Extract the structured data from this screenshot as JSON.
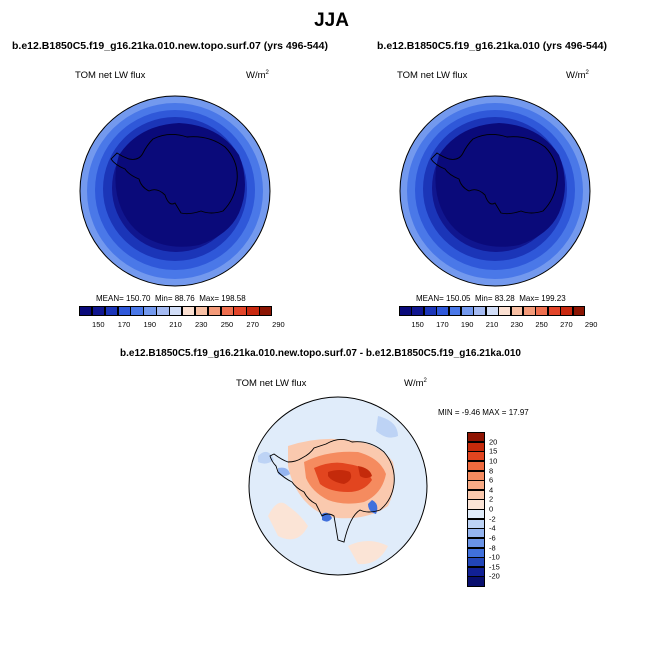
{
  "title": "JJA",
  "panels": [
    {
      "id": "left",
      "case_title": "b.e12.B1850C5.f19_g16.21ka.010.new.topo.surf.07 (yrs 496-544)",
      "variable": "TOM net LW flux",
      "units": "W/m",
      "units_sup": "2",
      "mean_label": "MEAN= 150.70",
      "min_label": "Min=  88.76",
      "max_label": "Max= 198.58"
    },
    {
      "id": "right",
      "case_title": "b.e12.B1850C5.f19_g16.21ka.010 (yrs 496-544)",
      "variable": "TOM net LW flux",
      "units": "W/m",
      "units_sup": "2",
      "mean_label": "MEAN= 150.05",
      "min_label": "Min=  83.28",
      "max_label": "Max= 199.23"
    }
  ],
  "colorbar_top": {
    "labels": [
      "150",
      "170",
      "190",
      "210",
      "230",
      "250",
      "270",
      "290"
    ],
    "colors": [
      "#0a0a7a",
      "#10168f",
      "#1b35b8",
      "#2f58d9",
      "#4a78e8",
      "#7399ee",
      "#a4baf2",
      "#d1ddf7",
      "#fbe0d2",
      "#f8c0a4",
      "#f39a79",
      "#ee6f4f",
      "#e2452a",
      "#c82910",
      "#8b1503"
    ]
  },
  "diff_panel": {
    "title": "b.e12.B1850C5.f19_g16.21ka.010.new.topo.surf.07 - b.e12.B1850C5.f19_g16.21ka.010",
    "variable": "TOM net LW flux",
    "units": "W/m",
    "units_sup": "2",
    "minmax_label": "MIN =  -9.46 MAX =  17.97"
  },
  "colorbar_diff": {
    "labels": [
      "20",
      "15",
      "10",
      "8",
      "6",
      "4",
      "2",
      "0",
      "-2",
      "-4",
      "-6",
      "-8",
      "-10",
      "-15",
      "-20"
    ],
    "colors": [
      "#8f1402",
      "#c42a0b",
      "#e2451f",
      "#ef6a3e",
      "#f58b5f",
      "#f8ab86",
      "#fac9ae",
      "#fbe4d6",
      "#e0ecfa",
      "#bdd3f5",
      "#94b4ef",
      "#6a93e6",
      "#4070dc",
      "#2245b8",
      "#112094",
      "#090f6e"
    ]
  },
  "chart_data": {
    "type": "heatmap",
    "season": "JJA",
    "projection": "south polar stereographic",
    "fields": [
      {
        "case": "b.e12.B1850C5.f19_g16.21ka.010.new.topo.surf.07 (yrs 496-544)",
        "variable": "TOM net LW flux",
        "units": "W/m2",
        "mean": 150.7,
        "min": 88.76,
        "max": 198.58
      },
      {
        "case": "b.e12.B1850C5.f19_g16.21ka.010 (yrs 496-544)",
        "variable": "TOM net LW flux",
        "units": "W/m2",
        "mean": 150.05,
        "min": 83.28,
        "max": 199.23
      },
      {
        "case": "difference",
        "variable": "TOM net LW flux",
        "units": "W/m2",
        "min": -9.46,
        "max": 17.97
      }
    ],
    "contour_levels_top": [
      150,
      160,
      170,
      180,
      190,
      200,
      210,
      220,
      230,
      240,
      250,
      260,
      270,
      280,
      290
    ],
    "contour_levels_diff": [
      -20,
      -15,
      -10,
      -8,
      -6,
      -4,
      -2,
      0,
      2,
      4,
      6,
      8,
      10,
      15,
      20
    ]
  }
}
